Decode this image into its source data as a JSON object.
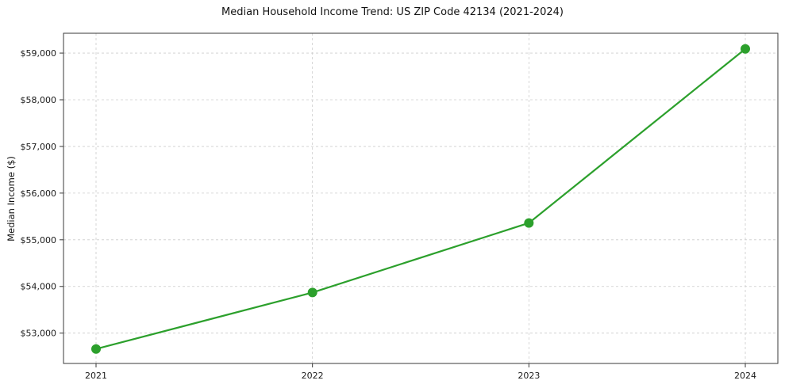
{
  "chart_data": {
    "type": "line",
    "title": "Median Household Income Trend: US ZIP Code 42134 (2021-2024)",
    "ylabel": "Median Income ($)",
    "xlabel": "",
    "categories": [
      "2021",
      "2022",
      "2023",
      "2024"
    ],
    "values": [
      52660,
      53870,
      55360,
      59090
    ],
    "ylim": [
      52350,
      59425
    ],
    "yticks": [
      53000,
      54000,
      55000,
      56000,
      57000,
      58000,
      59000
    ],
    "ytick_labels": [
      "$53,000",
      "$54,000",
      "$55,000",
      "$56,000",
      "$57,000",
      "$58,000",
      "$59,000"
    ],
    "line_color": "#2ca02c",
    "marker": "circle",
    "grid": true,
    "grid_style": "dashed",
    "grid_color": "#cccccc",
    "axis_color": "#3a3a3a",
    "tick_label_color": "#1a1a1a",
    "legend": "none",
    "background": "#ffffff"
  }
}
